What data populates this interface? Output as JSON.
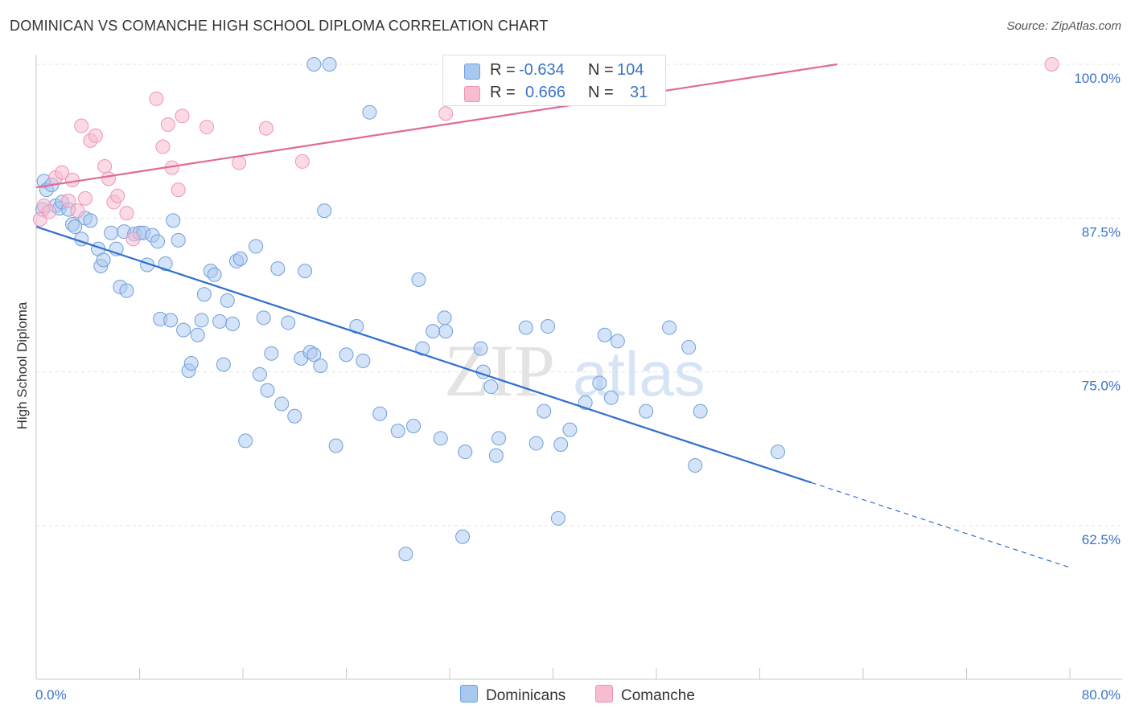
{
  "header": {
    "title": "DOMINICAN VS COMANCHE HIGH SCHOOL DIPLOMA CORRELATION CHART",
    "source": "Source: ZipAtlas.com"
  },
  "watermark": {
    "zip": "ZIP",
    "atlas": "atlas"
  },
  "legend_top": {
    "rows": [
      {
        "r_label": "R =",
        "r_value": "-0.634",
        "n_label": "N =",
        "n_value": "104"
      },
      {
        "r_label": "R =",
        "r_value": "0.666",
        "n_label": "N =",
        "n_value": "31"
      }
    ]
  },
  "legend_bottom": {
    "items": [
      "Dominicans",
      "Comanche"
    ]
  },
  "colors": {
    "dominicans_fill": "#a9c8f0",
    "dominicans_stroke": "#6fa0dc",
    "dominicans_line": "#2f6fcf",
    "comanche_fill": "#f7bcd0",
    "comanche_stroke": "#ef94b4",
    "comanche_line": "#e06a95",
    "axis_text": "#3a74c9"
  },
  "chart_data": {
    "type": "scatter",
    "title": "DOMINICAN VS COMANCHE HIGH SCHOOL DIPLOMA CORRELATION CHART",
    "xlabel": "",
    "ylabel": "High School Diploma",
    "xlim": [
      0,
      80
    ],
    "ylim": [
      52.5,
      101.0
    ],
    "x_tick_labels": [
      "0.0%",
      "80.0%"
    ],
    "y_ticks": [
      62.5,
      75.0,
      87.5,
      100.0
    ],
    "y_tick_labels": [
      "62.5%",
      "75.0%",
      "87.5%",
      "100.0%"
    ],
    "grid": "horizontal dashed",
    "legend_position": "top-center",
    "series": [
      {
        "name": "Dominicans",
        "r": -0.634,
        "n": 104,
        "trend": {
          "x0": 0,
          "y0": 86.8,
          "x1": 60,
          "y1": 66.0,
          "dashed_to_x": 80,
          "dashed_to_y": 59.1
        },
        "points": [
          [
            0.5,
            88.2
          ],
          [
            0.6,
            90.5
          ],
          [
            0.8,
            89.8
          ],
          [
            1.2,
            90.2
          ],
          [
            1.5,
            88.5
          ],
          [
            1.8,
            88.3
          ],
          [
            2.0,
            88.8
          ],
          [
            2.5,
            88.2
          ],
          [
            2.8,
            87.0
          ],
          [
            3.0,
            86.8
          ],
          [
            3.5,
            85.8
          ],
          [
            3.8,
            87.5
          ],
          [
            4.2,
            87.3
          ],
          [
            4.8,
            85.0
          ],
          [
            5.0,
            83.6
          ],
          [
            5.2,
            84.1
          ],
          [
            5.8,
            86.3
          ],
          [
            6.2,
            85.0
          ],
          [
            6.5,
            81.9
          ],
          [
            6.8,
            86.4
          ],
          [
            7.0,
            81.6
          ],
          [
            7.6,
            86.2
          ],
          [
            8.0,
            86.3
          ],
          [
            8.3,
            86.3
          ],
          [
            8.6,
            83.7
          ],
          [
            9.0,
            86.1
          ],
          [
            9.4,
            85.6
          ],
          [
            9.6,
            79.3
          ],
          [
            10.0,
            83.8
          ],
          [
            10.4,
            79.2
          ],
          [
            10.6,
            87.3
          ],
          [
            11.0,
            85.7
          ],
          [
            11.4,
            78.4
          ],
          [
            11.8,
            75.1
          ],
          [
            12.0,
            75.7
          ],
          [
            12.5,
            78.0
          ],
          [
            12.8,
            79.2
          ],
          [
            13.0,
            81.3
          ],
          [
            13.5,
            83.2
          ],
          [
            13.8,
            82.9
          ],
          [
            14.2,
            79.1
          ],
          [
            14.5,
            75.6
          ],
          [
            14.8,
            80.8
          ],
          [
            15.2,
            78.9
          ],
          [
            15.5,
            84.0
          ],
          [
            15.8,
            84.2
          ],
          [
            16.2,
            69.4
          ],
          [
            17.0,
            85.2
          ],
          [
            17.3,
            74.8
          ],
          [
            17.6,
            79.4
          ],
          [
            17.9,
            73.5
          ],
          [
            18.2,
            76.5
          ],
          [
            18.7,
            83.4
          ],
          [
            19.0,
            72.4
          ],
          [
            19.5,
            79.0
          ],
          [
            20.0,
            71.4
          ],
          [
            20.5,
            76.1
          ],
          [
            20.8,
            83.2
          ],
          [
            21.2,
            76.6
          ],
          [
            21.5,
            76.4
          ],
          [
            22.0,
            75.5
          ],
          [
            22.3,
            88.1
          ],
          [
            23.2,
            69.0
          ],
          [
            24.0,
            76.4
          ],
          [
            24.8,
            78.7
          ],
          [
            25.3,
            75.9
          ],
          [
            25.8,
            96.1
          ],
          [
            26.6,
            71.6
          ],
          [
            28.0,
            70.2
          ],
          [
            28.6,
            60.2
          ],
          [
            29.2,
            70.6
          ],
          [
            29.6,
            82.5
          ],
          [
            29.9,
            76.9
          ],
          [
            30.7,
            78.3
          ],
          [
            31.3,
            69.6
          ],
          [
            31.6,
            79.4
          ],
          [
            31.7,
            78.3
          ],
          [
            33.0,
            61.6
          ],
          [
            33.2,
            68.5
          ],
          [
            34.4,
            76.9
          ],
          [
            34.6,
            75.0
          ],
          [
            35.2,
            73.8
          ],
          [
            35.6,
            68.2
          ],
          [
            35.8,
            69.6
          ],
          [
            37.9,
            78.6
          ],
          [
            38.7,
            69.2
          ],
          [
            39.3,
            71.8
          ],
          [
            39.6,
            78.7
          ],
          [
            40.4,
            63.1
          ],
          [
            40.6,
            69.1
          ],
          [
            41.3,
            70.3
          ],
          [
            42.5,
            72.5
          ],
          [
            43.6,
            74.1
          ],
          [
            44.0,
            78.0
          ],
          [
            44.5,
            72.9
          ],
          [
            45.0,
            77.5
          ],
          [
            47.2,
            71.8
          ],
          [
            49.0,
            78.6
          ],
          [
            50.5,
            77.0
          ],
          [
            51.0,
            67.4
          ],
          [
            51.4,
            71.8
          ],
          [
            57.4,
            68.5
          ],
          [
            21.5,
            100.0
          ],
          [
            22.7,
            100.0
          ]
        ]
      },
      {
        "name": "Comanche",
        "r": 0.666,
        "n": 31,
        "trend": {
          "x0": 0,
          "y0": 90.0,
          "x1": 62,
          "y1": 100.0
        },
        "points": [
          [
            0.3,
            87.4
          ],
          [
            0.6,
            88.5
          ],
          [
            1.0,
            88.0
          ],
          [
            1.5,
            90.8
          ],
          [
            2.0,
            91.2
          ],
          [
            2.5,
            88.9
          ],
          [
            2.8,
            90.6
          ],
          [
            3.2,
            88.1
          ],
          [
            3.5,
            95.0
          ],
          [
            3.8,
            89.1
          ],
          [
            4.2,
            93.8
          ],
          [
            4.6,
            94.2
          ],
          [
            5.3,
            91.7
          ],
          [
            5.6,
            90.7
          ],
          [
            6.0,
            88.8
          ],
          [
            6.3,
            89.3
          ],
          [
            7.0,
            87.9
          ],
          [
            7.5,
            85.8
          ],
          [
            9.3,
            97.2
          ],
          [
            9.8,
            93.3
          ],
          [
            10.2,
            95.1
          ],
          [
            10.5,
            91.6
          ],
          [
            11.0,
            89.8
          ],
          [
            11.3,
            95.8
          ],
          [
            13.2,
            94.9
          ],
          [
            15.7,
            92.0
          ],
          [
            17.8,
            94.8
          ],
          [
            20.6,
            92.1
          ],
          [
            31.7,
            96.0
          ],
          [
            33.4,
            100.0
          ],
          [
            78.6,
            100.0
          ]
        ]
      }
    ]
  }
}
